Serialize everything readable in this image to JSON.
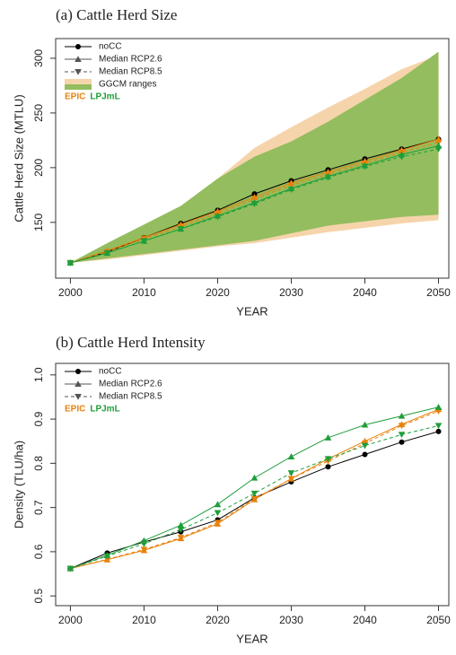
{
  "chart_data": [
    {
      "type": "line",
      "title": "(a) Cattle Herd Size",
      "x_label": "YEAR",
      "y_label": "Cattle Herd Size (MTLU)",
      "x": [
        2000,
        2005,
        2010,
        2015,
        2020,
        2025,
        2030,
        2035,
        2040,
        2045,
        2050
      ],
      "xlim": [
        1998,
        2051.4
      ],
      "xticks": [
        2000,
        2010,
        2020,
        2030,
        2040,
        2050
      ],
      "ylim": [
        99,
        318
      ],
      "yticks": [
        150,
        200,
        250,
        300
      ],
      "legend": "top-left",
      "nocc": {
        "name": "noCC",
        "color": "#000000",
        "values": [
          113,
          123,
          136,
          149,
          161,
          176,
          188,
          198,
          208,
          217,
          226
        ]
      },
      "scenarios": [
        {
          "label": "Median RCP2.6",
          "marker": "triangle-up",
          "dashed": false
        },
        {
          "label": "Median RCP8.5",
          "marker": "triangle-down",
          "dashed": true
        }
      ],
      "range_label": "GGCM ranges",
      "models": [
        {
          "name": "EPIC",
          "color": "#e8820c",
          "values": [
            [
              113,
              124,
              136,
              148,
              160,
              173,
              186,
              196,
              206,
              216,
              226
            ],
            [
              113,
              123,
              135,
              146,
              158,
              171,
              184,
              194,
              204,
              214,
              223
            ]
          ],
          "range": {
            "color": "#f6d4ab",
            "low": [
              113,
              116,
              120,
              124,
              128,
              131,
              136,
              141,
              145,
              149,
              152
            ],
            "high": [
              113,
              128,
              142,
              160,
              190,
              218,
              237,
              255,
              272,
              290,
              303
            ]
          }
        },
        {
          "name": "LPJmL",
          "color": "#1f9e3a",
          "values": [
            [
              113,
              122,
              133,
              144,
              156,
              168,
              181,
              192,
              202,
              212,
              220
            ],
            [
              113,
              122,
              133,
              144,
              155,
              167,
              180,
              191,
              201,
              210,
              217
            ]
          ],
          "range": {
            "color": "#93bd5e",
            "low": [
              113,
              117,
              121,
              125,
              129,
              133,
              140,
              147,
              151,
              155,
              157
            ],
            "high": [
              113,
              131,
              148,
              165,
              190,
              210,
              224,
              242,
              262,
              282,
              306
            ]
          }
        }
      ]
    },
    {
      "type": "line",
      "title": "(b) Cattle Herd Intensity",
      "x_label": "YEAR",
      "y_label": "Density (TLU/ha)",
      "x": [
        2000,
        2005,
        2010,
        2015,
        2020,
        2025,
        2030,
        2035,
        2040,
        2045,
        2050
      ],
      "xlim": [
        1998,
        2051.4
      ],
      "xticks": [
        2000,
        2010,
        2020,
        2030,
        2040,
        2050
      ],
      "ylim": [
        0.478,
        1.026
      ],
      "yticks": [
        0.5,
        0.6,
        0.7,
        0.8,
        0.9,
        {
          "value": 1,
          "label": "1.0"
        }
      ],
      "legend": "top-left",
      "nocc": {
        "name": "noCC",
        "color": "#000000",
        "values": [
          0.562,
          0.597,
          0.622,
          0.645,
          0.672,
          0.722,
          0.758,
          0.792,
          0.82,
          0.848,
          0.872
        ]
      },
      "scenarios": [
        {
          "label": "Median RCP2.6",
          "marker": "triangle-up",
          "dashed": false
        },
        {
          "label": "Median RCP8.5",
          "marker": "triangle-down",
          "dashed": true
        }
      ],
      "models": [
        {
          "name": "EPIC",
          "color": "#e8820c",
          "values": [
            [
              0.562,
              0.582,
              0.603,
              0.63,
              0.663,
              0.718,
              0.765,
              0.81,
              0.85,
              0.888,
              0.922
            ],
            [
              0.562,
              0.583,
              0.605,
              0.632,
              0.666,
              0.72,
              0.765,
              0.805,
              0.845,
              0.885,
              0.918
            ]
          ]
        },
        {
          "name": "LPJmL",
          "color": "#1f9e3a",
          "values": [
            [
              0.562,
              0.592,
              0.625,
              0.66,
              0.707,
              0.767,
              0.815,
              0.858,
              0.887,
              0.907,
              0.927
            ],
            [
              0.562,
              0.59,
              0.618,
              0.65,
              0.688,
              0.732,
              0.778,
              0.81,
              0.84,
              0.865,
              0.885
            ]
          ]
        }
      ]
    }
  ]
}
